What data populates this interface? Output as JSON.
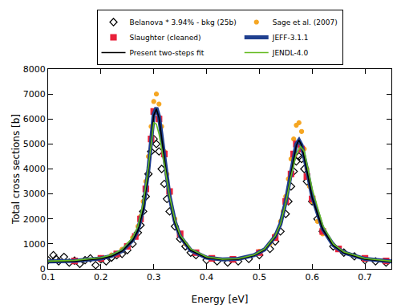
{
  "chart_data": {
    "type": "scatter",
    "x_label": "Energy [eV]",
    "y_label": "Total cross sections [b]",
    "xlim": [
      0.1,
      0.75
    ],
    "ylim": [
      0,
      8000
    ],
    "xticks": [
      0.1,
      0.2,
      0.3,
      0.4,
      0.5,
      0.6,
      0.7
    ],
    "yticks": [
      0,
      1000,
      2000,
      3000,
      4000,
      5000,
      6000,
      7000,
      8000
    ],
    "grid": false,
    "legend": "top",
    "series": [
      {
        "name": "Belanova * 3.94% - bkg (25b)",
        "type": "scatter",
        "marker": "diamond-open",
        "color": "#000000",
        "x": [
          0.1,
          0.11,
          0.115,
          0.12,
          0.13,
          0.14,
          0.15,
          0.16,
          0.17,
          0.18,
          0.19,
          0.2,
          0.21,
          0.22,
          0.23,
          0.24,
          0.25,
          0.26,
          0.27,
          0.275,
          0.28,
          0.285,
          0.29,
          0.295,
          0.3,
          0.305,
          0.31,
          0.315,
          0.32,
          0.325,
          0.33,
          0.34,
          0.35,
          0.36,
          0.37,
          0.38,
          0.4,
          0.42,
          0.44,
          0.46,
          0.48,
          0.5,
          0.52,
          0.53,
          0.54,
          0.55,
          0.555,
          0.56,
          0.565,
          0.57,
          0.575,
          0.58,
          0.585,
          0.59,
          0.6,
          0.61,
          0.62,
          0.64,
          0.66,
          0.68,
          0.7,
          0.72,
          0.74
        ],
        "values": [
          350,
          550,
          400,
          300,
          480,
          250,
          330,
          200,
          350,
          420,
          150,
          380,
          300,
          450,
          550,
          600,
          750,
          1000,
          1450,
          1750,
          2300,
          2900,
          3800,
          4700,
          5200,
          5000,
          4700,
          4000,
          3400,
          2800,
          2300,
          1700,
          1200,
          900,
          650,
          550,
          350,
          300,
          250,
          300,
          400,
          550,
          800,
          1100,
          1500,
          2200,
          2700,
          3300,
          3900,
          4300,
          4500,
          4400,
          4000,
          3500,
          2700,
          2000,
          1500,
          900,
          650,
          500,
          350,
          300,
          250
        ]
      },
      {
        "name": "Sage et al. (2007)",
        "type": "scatter",
        "marker": "circle",
        "color": "#f5a623",
        "x": [
          0.2,
          0.22,
          0.24,
          0.25,
          0.26,
          0.27,
          0.275,
          0.28,
          0.285,
          0.29,
          0.295,
          0.3,
          0.305,
          0.31,
          0.315,
          0.32,
          0.325,
          0.33,
          0.34,
          0.35,
          0.36,
          0.38,
          0.5,
          0.52,
          0.53,
          0.54,
          0.545,
          0.55,
          0.555,
          0.56,
          0.565,
          0.57,
          0.575,
          0.58,
          0.585,
          0.59,
          0.595,
          0.6,
          0.61,
          0.62
        ],
        "values": [
          450,
          560,
          780,
          950,
          1250,
          1700,
          2100,
          2700,
          3500,
          4500,
          5700,
          6700,
          7000,
          6600,
          5700,
          4700,
          3800,
          3000,
          2000,
          1400,
          1000,
          650,
          700,
          1000,
          1350,
          1900,
          2300,
          2900,
          3600,
          4400,
          5200,
          5750,
          5850,
          5500,
          4800,
          4000,
          3300,
          2700,
          1900,
          1400
        ]
      },
      {
        "name": "Slaughter (cleaned)",
        "type": "scatter",
        "marker": "square",
        "color": "#e8213a",
        "x": [
          0.15,
          0.2,
          0.23,
          0.25,
          0.265,
          0.275,
          0.285,
          0.295,
          0.3,
          0.31,
          0.32,
          0.33,
          0.35,
          0.38,
          0.41,
          0.45,
          0.5,
          0.53,
          0.55,
          0.56,
          0.565,
          0.57,
          0.58,
          0.59,
          0.6,
          0.62,
          0.65,
          0.7,
          0.74
        ],
        "values": [
          320,
          420,
          600,
          900,
          1300,
          2000,
          3200,
          5200,
          6300,
          6000,
          4600,
          3100,
          1400,
          650,
          420,
          380,
          650,
          1250,
          2700,
          3800,
          4600,
          5000,
          4800,
          3700,
          2800,
          1500,
          800,
          420,
          320
        ]
      },
      {
        "name": "JEFF-3.1.1",
        "type": "line",
        "line_style": "solid",
        "color": "#1f3f8f",
        "x": [
          0.1,
          0.15,
          0.2,
          0.22,
          0.24,
          0.26,
          0.27,
          0.28,
          0.29,
          0.3,
          0.305,
          0.31,
          0.32,
          0.33,
          0.34,
          0.35,
          0.37,
          0.4,
          0.43,
          0.46,
          0.49,
          0.51,
          0.53,
          0.54,
          0.55,
          0.56,
          0.57,
          0.575,
          0.58,
          0.59,
          0.6,
          0.62,
          0.64,
          0.66,
          0.7,
          0.75
        ],
        "values": [
          300,
          320,
          420,
          520,
          720,
          1150,
          1550,
          2400,
          4000,
          6200,
          6450,
          6100,
          4500,
          2900,
          1900,
          1300,
          750,
          450,
          380,
          400,
          550,
          780,
          1300,
          1800,
          2700,
          3900,
          5000,
          5150,
          4950,
          4000,
          2900,
          1600,
          950,
          650,
          400,
          300
        ]
      },
      {
        "name": "Present two-steps fit",
        "type": "line",
        "line_style": "solid",
        "color": "#000000",
        "x": [
          0.1,
          0.15,
          0.2,
          0.22,
          0.24,
          0.26,
          0.27,
          0.28,
          0.29,
          0.3,
          0.305,
          0.31,
          0.32,
          0.33,
          0.34,
          0.35,
          0.37,
          0.4,
          0.43,
          0.46,
          0.49,
          0.51,
          0.53,
          0.54,
          0.55,
          0.56,
          0.57,
          0.575,
          0.58,
          0.59,
          0.6,
          0.62,
          0.64,
          0.66,
          0.7,
          0.75
        ],
        "values": [
          290,
          310,
          410,
          510,
          710,
          1130,
          1530,
          2350,
          3950,
          6150,
          6400,
          6050,
          4450,
          2850,
          1850,
          1280,
          740,
          440,
          370,
          390,
          540,
          770,
          1280,
          1780,
          2650,
          3850,
          4950,
          5150,
          4950,
          3950,
          2850,
          1580,
          940,
          640,
          390,
          290
        ]
      },
      {
        "name": "JENDL-4.0",
        "type": "line",
        "line_style": "solid",
        "color": "#66bb22",
        "x": [
          0.1,
          0.15,
          0.2,
          0.22,
          0.24,
          0.26,
          0.27,
          0.28,
          0.29,
          0.3,
          0.305,
          0.31,
          0.32,
          0.33,
          0.34,
          0.35,
          0.37,
          0.4,
          0.43,
          0.46,
          0.49,
          0.51,
          0.53,
          0.54,
          0.55,
          0.56,
          0.57,
          0.578,
          0.585,
          0.59,
          0.6,
          0.62,
          0.64,
          0.66,
          0.7,
          0.75
        ],
        "values": [
          310,
          340,
          450,
          560,
          780,
          1250,
          1700,
          2600,
          4100,
          5850,
          5800,
          5400,
          4200,
          2900,
          1950,
          1350,
          800,
          480,
          390,
          410,
          560,
          800,
          1320,
          1800,
          2650,
          3700,
          4600,
          4900,
          4700,
          4200,
          3200,
          1750,
          1000,
          680,
          420,
          310
        ]
      }
    ]
  }
}
